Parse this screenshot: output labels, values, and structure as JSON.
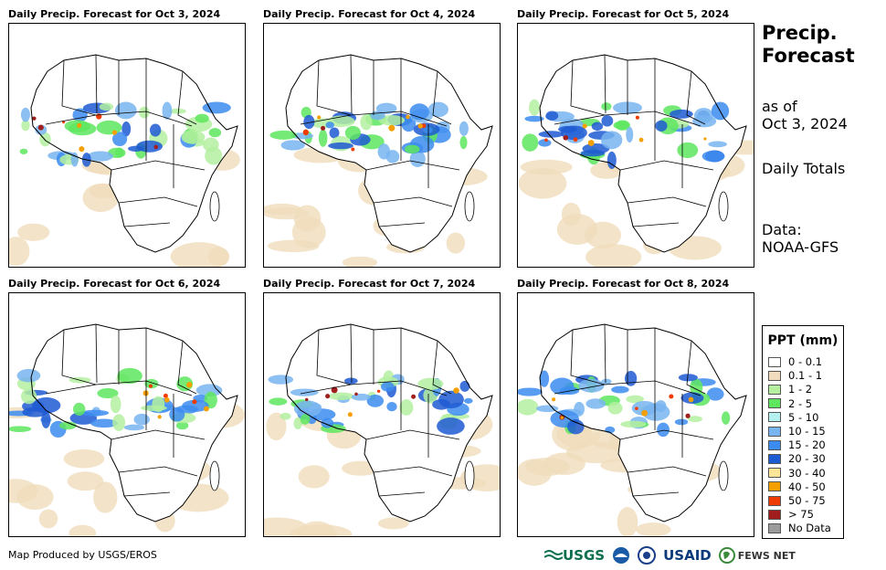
{
  "panels": [
    {
      "title": "Daily Precip. Forecast for Oct 3, 2024"
    },
    {
      "title": "Daily Precip. Forecast for Oct 4, 2024"
    },
    {
      "title": "Daily Precip. Forecast for Oct 5, 2024"
    },
    {
      "title": "Daily Precip. Forecast for Oct 6, 2024"
    },
    {
      "title": "Daily Precip. Forecast for Oct 7, 2024"
    },
    {
      "title": "Daily Precip. Forecast for Oct 8, 2024"
    }
  ],
  "side": {
    "title_line1": "Precip.",
    "title_line2": "Forecast",
    "asof_line1": "as of",
    "asof_line2": "Oct 3, 2024",
    "totals": "Daily Totals",
    "data_line1": "Data:",
    "data_line2": "NOAA-GFS"
  },
  "legend": {
    "title": "PPT (mm)",
    "items": [
      {
        "label": "0 - 0.1",
        "color": "#ffffff"
      },
      {
        "label": "0.1 - 1",
        "color": "#f0dcbc"
      },
      {
        "label": "1 - 2",
        "color": "#b4f0a0"
      },
      {
        "label": "2 - 5",
        "color": "#5ee65e"
      },
      {
        "label": "5 - 10",
        "color": "#b4f0f0"
      },
      {
        "label": "10 - 15",
        "color": "#78b4f0"
      },
      {
        "label": "15 - 20",
        "color": "#3c8cf0"
      },
      {
        "label": "20 - 30",
        "color": "#1e5ad2"
      },
      {
        "label": "30 - 40",
        "color": "#fae696"
      },
      {
        "label": "40 - 50",
        "color": "#f5a000"
      },
      {
        "label": "50 - 75",
        "color": "#f03c00"
      },
      {
        "label": "> 75",
        "color": "#a01e1e"
      },
      {
        "label": "No Data",
        "color": "#9b9b9b"
      }
    ]
  },
  "footer": {
    "credit": "Map Produced by USGS/EROS",
    "logo_usgs": "USGS",
    "logo_usaid": "USAID",
    "logo_fews": "FEWS NET"
  }
}
